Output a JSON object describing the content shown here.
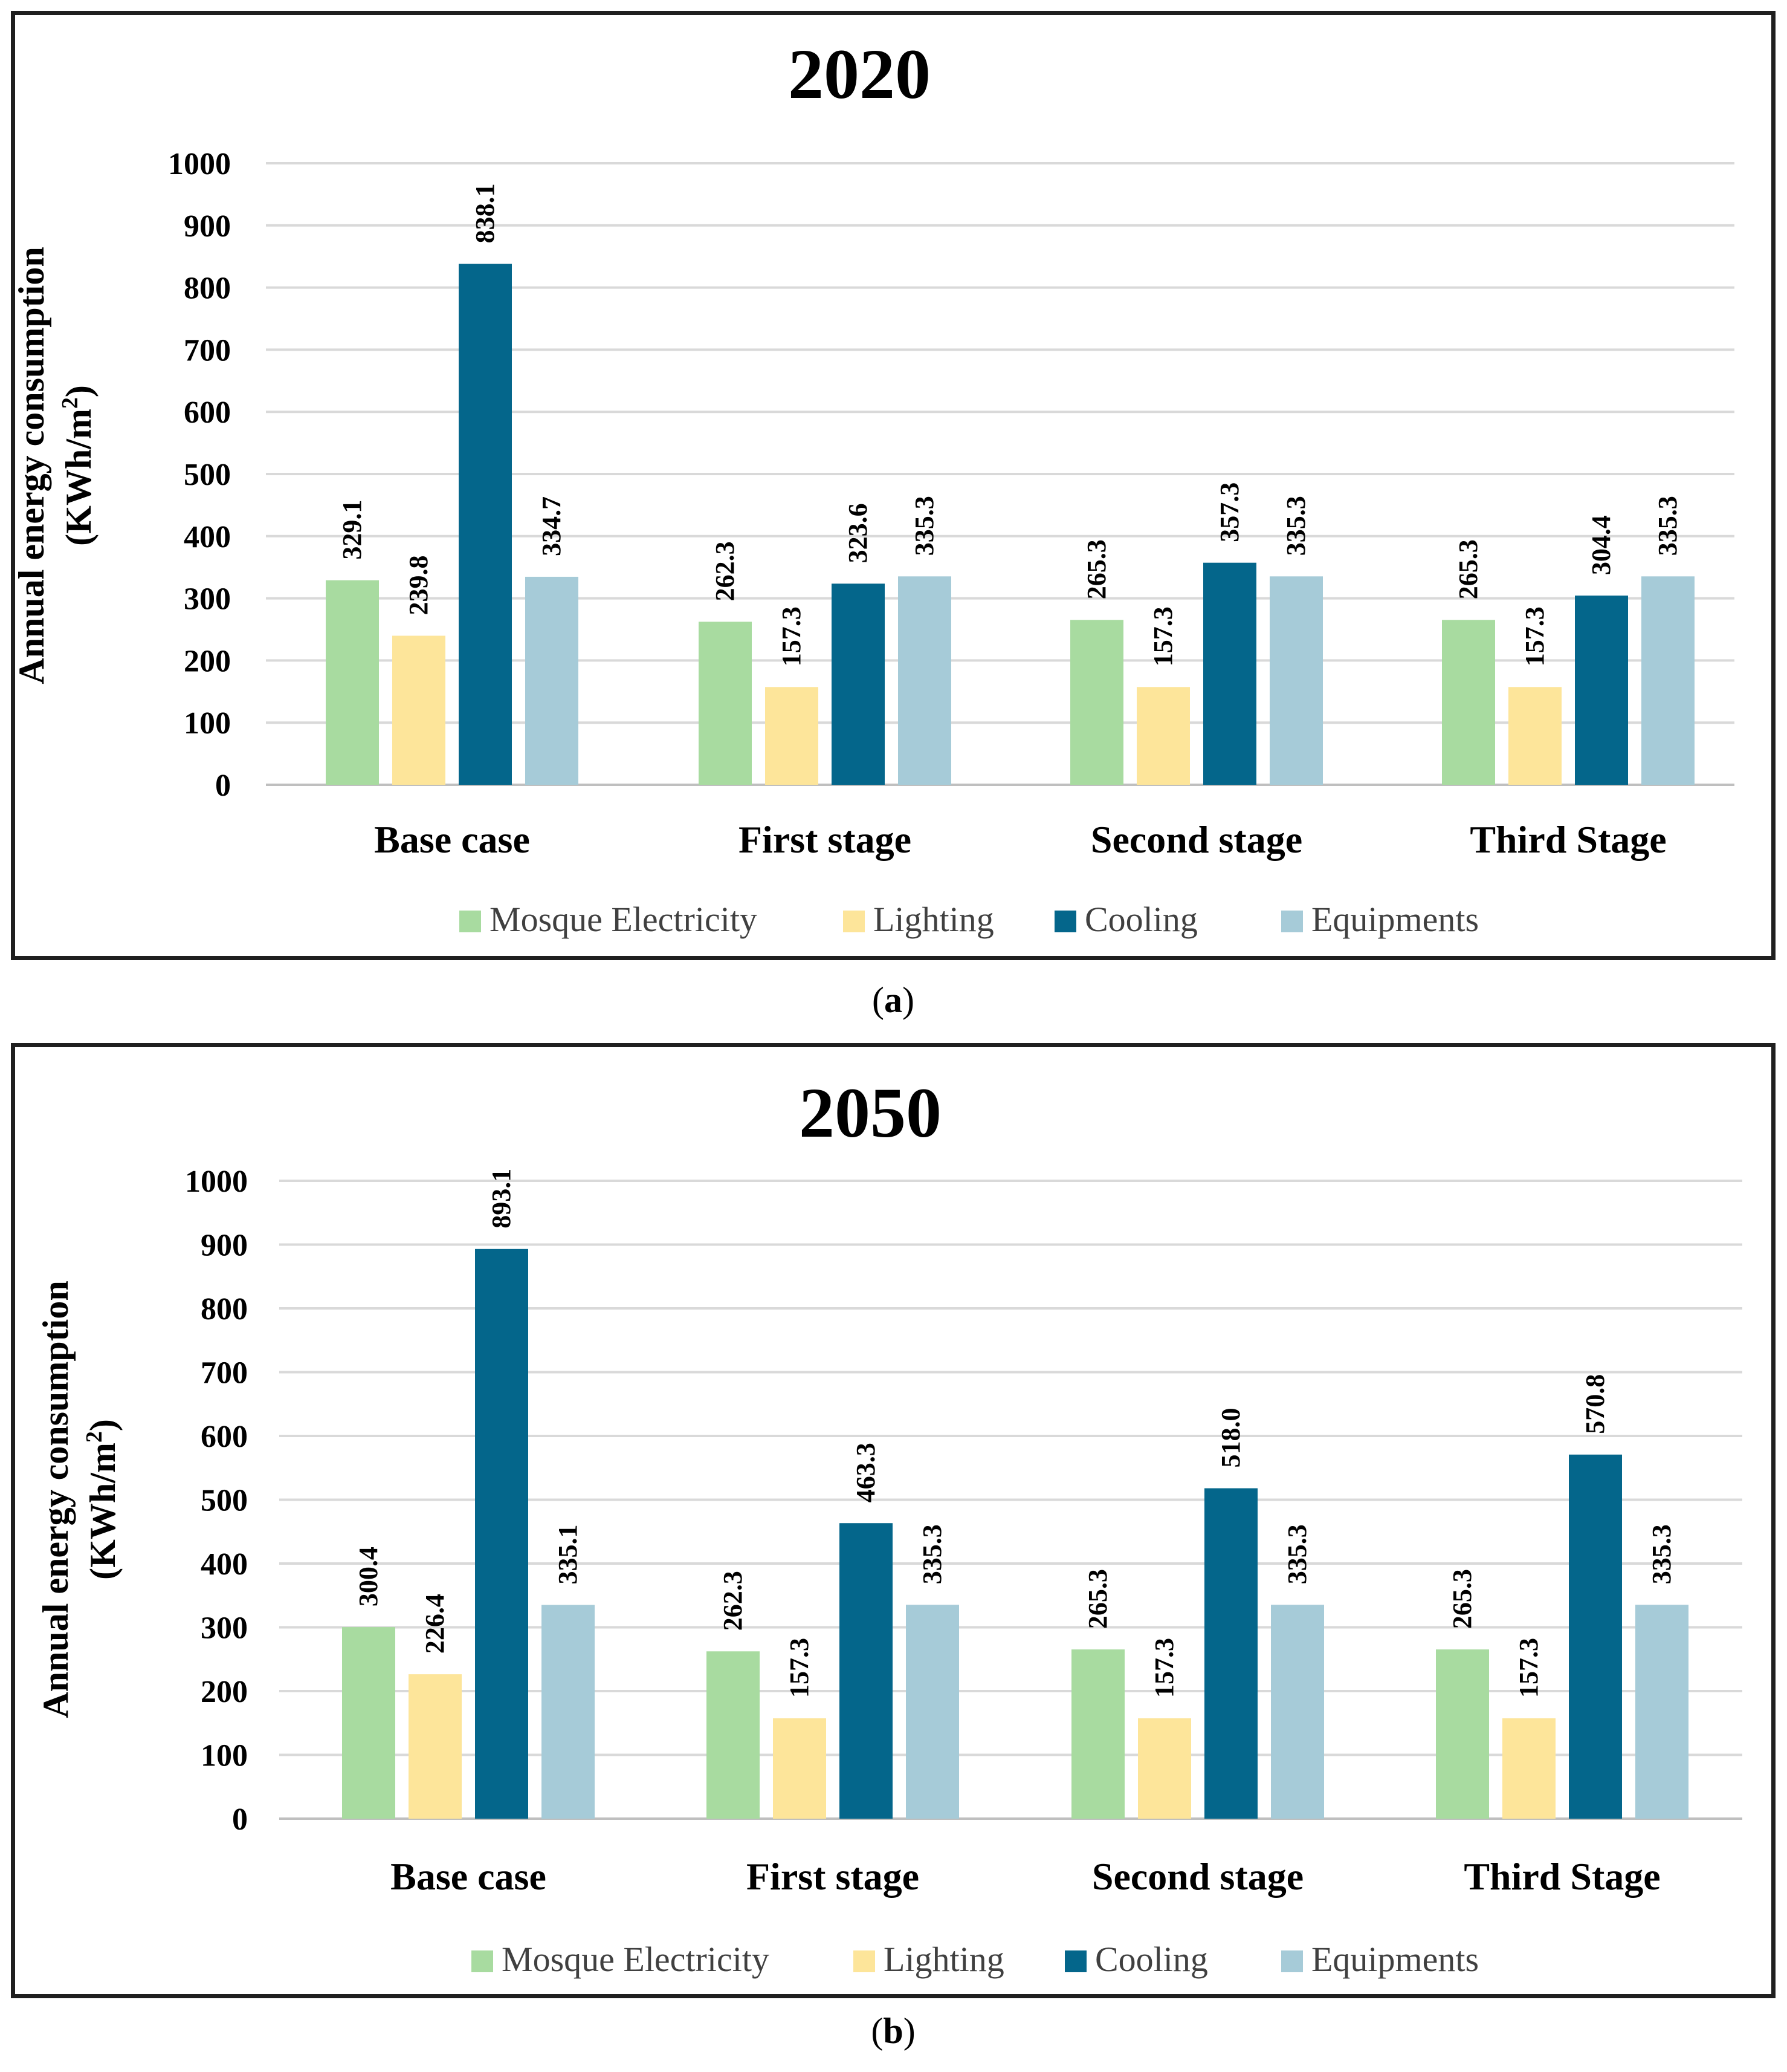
{
  "colors": {
    "mosque_electricity": "#a8dba0",
    "lighting": "#fde59a",
    "cooling": "#04668b",
    "equipments": "#a6cbd8",
    "gridline": "#d9d9d9",
    "axis": "#bfbfbf",
    "text": "#000000"
  },
  "captions": [
    {
      "open": "(",
      "letter": "a",
      "close": ")"
    },
    {
      "open": "(",
      "letter": "b",
      "close": ")"
    }
  ],
  "chart_data": [
    {
      "type": "bar",
      "title": "2020",
      "ylabel": "Annual energy consumption",
      "ylabel_unit": {
        "prefix": "(KWh/m",
        "sup": "2",
        "suffix": ")"
      },
      "xlabel": "",
      "ylim": [
        0,
        1000
      ],
      "yticks": [
        0,
        100,
        200,
        300,
        400,
        500,
        600,
        700,
        800,
        900,
        1000
      ],
      "grid": true,
      "legend_position": "bottom",
      "categories": [
        "Base case",
        "First stage",
        "Second stage",
        "Third Stage"
      ],
      "series": [
        {
          "name": "Mosque Electricity",
          "values": [
            329.1,
            262.3,
            265.3,
            265.3
          ],
          "labels": [
            "329.1",
            "262.3",
            "265.3",
            "265.3"
          ]
        },
        {
          "name": "Lighting",
          "values": [
            239.8,
            157.3,
            157.3,
            157.3
          ],
          "labels": [
            "239.8",
            "157.3",
            "157.3",
            "157.3"
          ]
        },
        {
          "name": "Cooling",
          "values": [
            838.1,
            323.6,
            357.3,
            304.4
          ],
          "labels": [
            "838.1",
            "323.6",
            "357.3",
            "304.4"
          ]
        },
        {
          "name": "Equipments",
          "values": [
            334.7,
            335.3,
            335.3,
            335.3
          ],
          "labels": [
            "334.7",
            "335.3",
            "335.3",
            "335.3"
          ]
        }
      ]
    },
    {
      "type": "bar",
      "title": "2050",
      "ylabel": "Annual energy consumption",
      "ylabel_unit": {
        "prefix": "(KWh/m",
        "sup": "2",
        "suffix": ")"
      },
      "xlabel": "",
      "ylim": [
        0,
        1000
      ],
      "yticks": [
        0,
        100,
        200,
        300,
        400,
        500,
        600,
        700,
        800,
        900,
        1000
      ],
      "grid": true,
      "legend_position": "bottom",
      "categories": [
        "Base case",
        "First stage",
        "Second stage",
        "Third Stage"
      ],
      "series": [
        {
          "name": "Mosque Electricity",
          "values": [
            300.4,
            262.3,
            265.3,
            265.3
          ],
          "labels": [
            "300.4",
            "262.3",
            "265.3",
            "265.3"
          ]
        },
        {
          "name": "Lighting",
          "values": [
            226.4,
            157.3,
            157.3,
            157.3
          ],
          "labels": [
            "226.4",
            "157.3",
            "157.3",
            "157.3"
          ]
        },
        {
          "name": "Cooling",
          "values": [
            893.1,
            463.3,
            518.0,
            570.8
          ],
          "labels": [
            "893.1",
            "463.3",
            "518.0",
            "570.8"
          ]
        },
        {
          "name": "Equipments",
          "values": [
            335.1,
            335.3,
            335.3,
            335.3
          ],
          "labels": [
            "335.1",
            "335.3",
            "335.3",
            "335.3"
          ]
        }
      ]
    }
  ]
}
